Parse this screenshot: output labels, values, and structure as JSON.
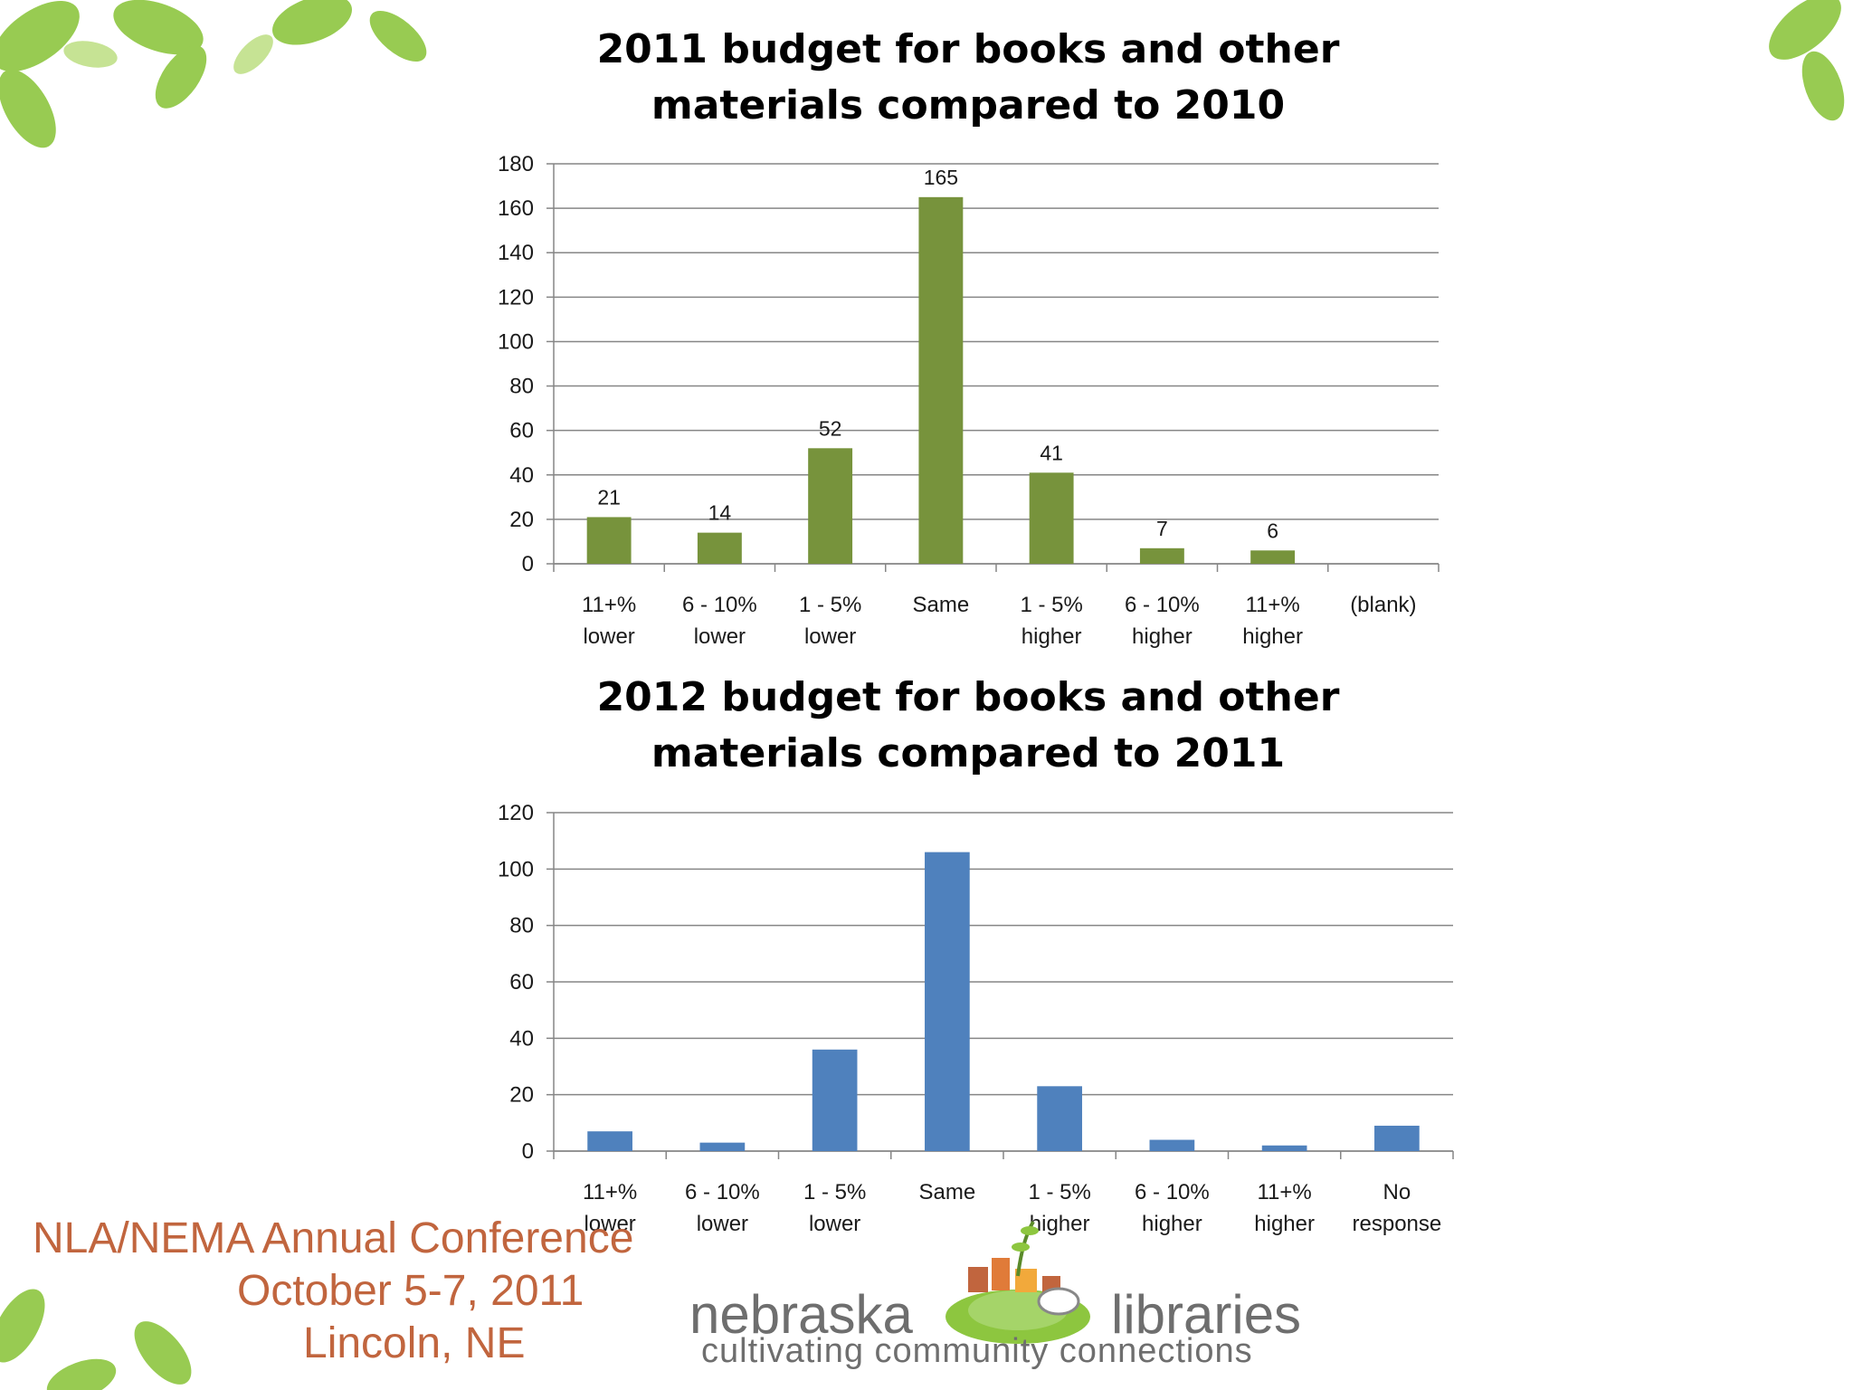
{
  "colors": {
    "series1": "#77933c",
    "series2": "#4f81bd",
    "grid": "#868686",
    "conference_text": "#c1653e",
    "logo_text": "#6e6e6e"
  },
  "chart_data": [
    {
      "type": "bar",
      "title": "2011 budget for books and other\nmaterials compared to 2010",
      "categories": [
        [
          "11+%",
          "lower"
        ],
        [
          "6 - 10%",
          "lower"
        ],
        [
          "1 - 5%",
          "lower"
        ],
        [
          "Same"
        ],
        [
          "1 - 5%",
          "higher"
        ],
        [
          "6 - 10%",
          "higher"
        ],
        [
          "11+%",
          "higher"
        ],
        [
          "(blank)"
        ]
      ],
      "values": [
        21,
        14,
        52,
        165,
        41,
        7,
        6,
        0
      ],
      "data_labels": [
        "21",
        "14",
        "52",
        "165",
        "41",
        "7",
        "6",
        ""
      ],
      "ylim": [
        0,
        180
      ],
      "yticks": [
        0,
        20,
        40,
        60,
        80,
        100,
        120,
        140,
        160,
        180
      ],
      "grid": true,
      "color": "#77933c"
    },
    {
      "type": "bar",
      "title": "2012 budget for books and other\nmaterials compared to 2011",
      "categories": [
        [
          "11+%",
          "lower"
        ],
        [
          "6 - 10%",
          "lower"
        ],
        [
          "1 - 5%",
          "lower"
        ],
        [
          "Same"
        ],
        [
          "1 - 5%",
          "higher"
        ],
        [
          "6 - 10%",
          "higher"
        ],
        [
          "11+%",
          "higher"
        ],
        [
          "No",
          "response"
        ]
      ],
      "values": [
        7,
        3,
        36,
        106,
        23,
        4,
        2,
        9
      ],
      "ylim": [
        0,
        120
      ],
      "yticks": [
        0,
        20,
        40,
        60,
        80,
        100,
        120
      ],
      "grid": true,
      "color": "#4f81bd"
    }
  ],
  "conference": {
    "name": "NLA/NEMA Annual Conference",
    "dates": "October 5-7, 2011",
    "place": "Lincoln, NE"
  },
  "logo": {
    "word_left": "nebraska",
    "word_right": "libraries",
    "tagline": "cultivating community connections"
  }
}
